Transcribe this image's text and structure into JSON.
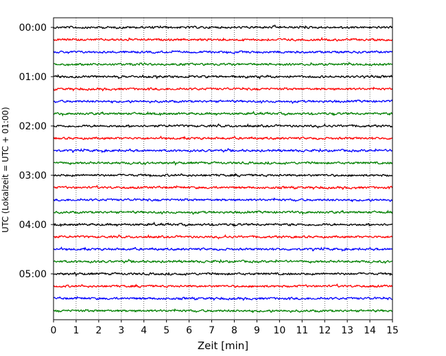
{
  "chart_data": {
    "type": "line",
    "title": "",
    "xlabel": "Zeit  [min]",
    "ylabel": "UTC (Lokalzeit = UTC + 01:00)",
    "xlim": [
      0,
      15
    ],
    "x_ticks": [
      "0",
      "1",
      "2",
      "3",
      "4",
      "5",
      "6",
      "7",
      "8",
      "9",
      "10",
      "11",
      "12",
      "13",
      "14",
      "15"
    ],
    "y_ticks": [
      "00:00",
      "01:00",
      "02:00",
      "03:00",
      "04:00",
      "05:00"
    ],
    "grid": "vertical dotted lines at each minute",
    "trace_interval_min": 15,
    "trace_count": 24,
    "trace_start_utc": "00:00",
    "colors": [
      "#000000",
      "#ff0000",
      "#0000ff",
      "#008000"
    ]
  }
}
